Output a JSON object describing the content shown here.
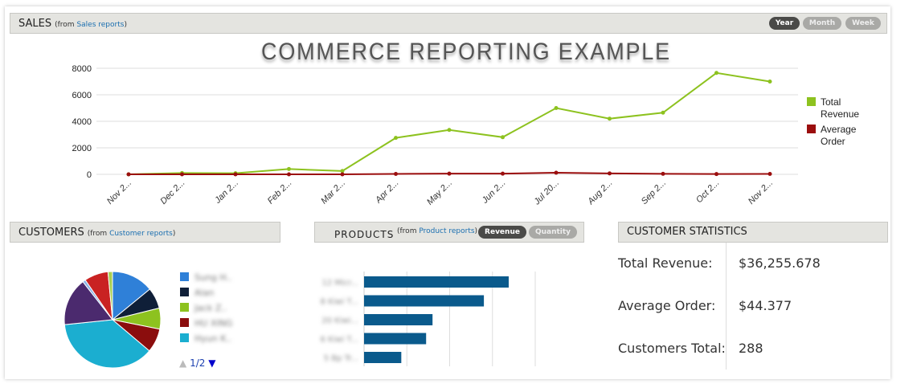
{
  "sales": {
    "title": "SALES",
    "from_prefix": "(from ",
    "link": "Sales reports",
    "from_suffix": ")",
    "buttons": [
      "Year",
      "Month",
      "Week"
    ],
    "active": "Year"
  },
  "customers": {
    "title": "CUSTOMERS",
    "from_prefix": "(from ",
    "link": "Customer reports",
    "from_suffix": ")",
    "pager": "1/2"
  },
  "products": {
    "title": "PRODUCTS",
    "from_prefix": "(from ",
    "link": "Product reports",
    "from_suffix": ")",
    "buttons": [
      "Revenue",
      "Quantity"
    ],
    "active": "Revenue"
  },
  "stats": {
    "title": "CUSTOMER STATISTICS",
    "rows": [
      {
        "label": "Total Revenue:",
        "value": "$36,255.678"
      },
      {
        "label": "Average Order:",
        "value": "$44.377"
      },
      {
        "label": "Customers Total:",
        "value": "288"
      }
    ]
  },
  "chart_data": [
    {
      "type": "line",
      "title": "COMMERCE REPORTING EXAMPLE",
      "categories": [
        "Nov 2...",
        "Dec 2...",
        "Jan 2...",
        "Feb 2...",
        "Mar 2...",
        "Apr 2...",
        "May 2...",
        "Jun 2...",
        "Jul 20...",
        "Aug 2...",
        "Sep 2...",
        "Oct 2...",
        "Nov 2..."
      ],
      "ylim": [
        0,
        8000
      ],
      "yticks": [
        0,
        2000,
        4000,
        6000,
        8000
      ],
      "grid": true,
      "legend": "right",
      "series": [
        {
          "name": "Total Revenue",
          "color": "#8dc21f",
          "values": [
            0,
            100,
            80,
            400,
            250,
            2750,
            3350,
            2800,
            5000,
            4200,
            4650,
            7650,
            7000
          ]
        },
        {
          "name": "Average Order",
          "color": "#9b0e0e",
          "values": [
            0,
            0,
            0,
            0,
            0,
            30,
            50,
            50,
            120,
            70,
            40,
            20,
            30
          ]
        }
      ]
    },
    {
      "type": "pie",
      "legend": "right",
      "slices": [
        {
          "label": "Sung H..",
          "color": "#2f80d8",
          "value": 14
        },
        {
          "label": "Alan",
          "color": "#0f1f38",
          "value": 7
        },
        {
          "label": "Jack Z..",
          "color": "#8dc21f",
          "value": 7
        },
        {
          "label": "HU XING",
          "color": "#8b0d0d",
          "value": 8
        },
        {
          "label": "Hyun K..",
          "color": "#1baed0",
          "value": 37
        },
        {
          "color": "#4b2a6e",
          "value": 16
        },
        {
          "color": "#8ab4e8",
          "value": 1
        },
        {
          "color": "#c92222",
          "value": 8
        },
        {
          "color": "#a8cf50",
          "value": 1.5
        }
      ]
    },
    {
      "type": "bar",
      "orientation": "horizontal",
      "color": "#0a5a8c",
      "categories": [
        "12 Micr...",
        "8 Kiwi T...",
        "20 Kiwi...",
        "6 Kiwi T...",
        "5 Bp Tr..."
      ],
      "values": [
        3.38,
        2.8,
        1.6,
        1.45,
        0.87
      ]
    }
  ]
}
